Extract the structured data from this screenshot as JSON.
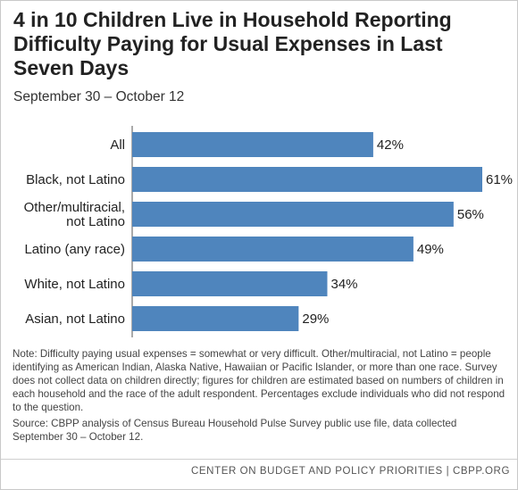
{
  "title": "4 in 10 Children Live in Household Reporting Difficulty Paying for Usual Expenses in Last Seven Days",
  "subtitle": "September 30 – October 12",
  "chart_data": {
    "type": "bar",
    "orientation": "horizontal",
    "categories": [
      [
        "All"
      ],
      [
        "Black, not Latino"
      ],
      [
        "Other/multiracial,",
        "not Latino"
      ],
      [
        "Latino (any race)"
      ],
      [
        "White, not Latino"
      ],
      [
        "Asian, not Latino"
      ]
    ],
    "values": [
      42,
      61,
      56,
      49,
      34,
      29
    ],
    "value_labels": [
      "42%",
      "61%",
      "56%",
      "49%",
      "34%",
      "29%"
    ],
    "xlim": [
      0,
      61
    ],
    "bar_color": "#4f85bd",
    "grid": false
  },
  "notes": {
    "note": "Note: Difficulty paying usual expenses = somewhat or very difficult. Other/multiracial, not Latino = people identifying as American Indian, Alaska Native, Hawaiian or Pacific Islander, or more than one race. Survey does not collect data on children directly; figures for children are estimated based on numbers of children in each household and the race of the adult respondent. Percentages exclude individuals who did not respond to the question.",
    "source": "Source: CBPP analysis of Census Bureau Household Pulse Survey public use file, data collected September 30 – October 12."
  },
  "footer": "CENTER ON BUDGET AND POLICY PRIORITIES | CBPP.ORG"
}
